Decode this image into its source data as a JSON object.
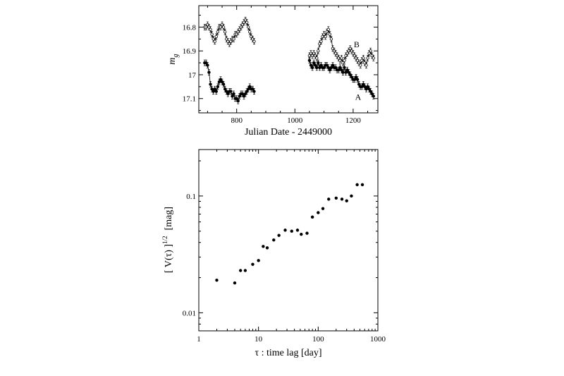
{
  "chart_data": [
    {
      "type": "scatter",
      "title": "",
      "xlabel": "Julian Date - 2449000",
      "ylabel": "m",
      "ylabel_subscript": "g",
      "xlim": [
        670,
        1285
      ],
      "ylim": [
        17.16,
        16.71
      ],
      "y_inverted": true,
      "x_ticks": [
        800,
        1000,
        1200
      ],
      "x_tick_labels": [
        "800",
        "1000",
        "1200"
      ],
      "y_ticks": [
        16.8,
        16.9,
        17.0,
        17.1
      ],
      "y_tick_labels": [
        "16.8",
        "16.9",
        "17",
        "17.1"
      ],
      "grid": false,
      "series": [
        {
          "name": "A",
          "marker": "filled-circle",
          "x": [
            690,
            695,
            700,
            705,
            710,
            715,
            720,
            725,
            730,
            735,
            740,
            745,
            750,
            755,
            760,
            765,
            770,
            775,
            780,
            785,
            790,
            795,
            800,
            805,
            810,
            815,
            820,
            825,
            830,
            835,
            840,
            845,
            850,
            855,
            860,
            1050,
            1055,
            1060,
            1065,
            1070,
            1075,
            1080,
            1085,
            1090,
            1095,
            1100,
            1105,
            1110,
            1115,
            1120,
            1125,
            1130,
            1135,
            1140,
            1145,
            1150,
            1155,
            1160,
            1165,
            1170,
            1175,
            1180,
            1185,
            1190,
            1195,
            1200,
            1205,
            1210,
            1215,
            1220,
            1225,
            1230,
            1235,
            1240,
            1245,
            1250,
            1255,
            1260,
            1265,
            1270
          ],
          "y": [
            16.95,
            16.95,
            16.96,
            16.99,
            17.04,
            17.06,
            17.07,
            17.06,
            17.07,
            17.05,
            17.03,
            17.02,
            17.03,
            17.04,
            17.06,
            17.07,
            17.08,
            17.07,
            17.07,
            17.09,
            17.08,
            17.1,
            17.1,
            17.11,
            17.09,
            17.08,
            17.08,
            17.09,
            17.08,
            17.07,
            17.06,
            17.05,
            17.06,
            17.06,
            17.07,
            16.94,
            16.96,
            16.97,
            16.95,
            16.96,
            16.97,
            16.95,
            16.97,
            16.96,
            16.97,
            16.97,
            16.96,
            16.96,
            16.97,
            16.98,
            16.97,
            16.96,
            16.97,
            16.97,
            16.98,
            16.98,
            16.97,
            16.98,
            16.99,
            16.97,
            16.99,
            16.98,
            16.99,
            17.0,
            17.01,
            17.02,
            17.02,
            17.01,
            17.02,
            17.04,
            17.05,
            17.05,
            17.04,
            17.05,
            17.06,
            17.05,
            17.06,
            17.07,
            17.08,
            17.09
          ]
        },
        {
          "name": "B",
          "marker": "open-circle",
          "x": [
            690,
            695,
            700,
            705,
            710,
            715,
            720,
            725,
            730,
            735,
            740,
            745,
            750,
            755,
            760,
            765,
            770,
            775,
            780,
            785,
            790,
            795,
            800,
            805,
            810,
            815,
            820,
            825,
            830,
            835,
            840,
            845,
            850,
            855,
            860,
            1050,
            1055,
            1060,
            1065,
            1070,
            1075,
            1080,
            1085,
            1090,
            1095,
            1100,
            1105,
            1110,
            1115,
            1120,
            1125,
            1130,
            1135,
            1140,
            1145,
            1150,
            1155,
            1160,
            1165,
            1170,
            1175,
            1180,
            1185,
            1190,
            1195,
            1200,
            1205,
            1210,
            1215,
            1220,
            1225,
            1230,
            1235,
            1240,
            1245,
            1250,
            1255,
            1260,
            1265,
            1270
          ],
          "y": [
            16.8,
            16.8,
            16.79,
            16.8,
            16.81,
            16.83,
            16.85,
            16.86,
            16.84,
            16.82,
            16.8,
            16.8,
            16.79,
            16.8,
            16.82,
            16.85,
            16.86,
            16.87,
            16.86,
            16.85,
            16.85,
            16.83,
            16.83,
            16.82,
            16.81,
            16.8,
            16.79,
            16.78,
            16.77,
            16.78,
            16.8,
            16.82,
            16.84,
            16.85,
            16.86,
            16.92,
            16.91,
            16.92,
            16.91,
            16.92,
            16.93,
            16.9,
            16.87,
            16.86,
            16.84,
            16.83,
            16.84,
            16.82,
            16.81,
            16.83,
            16.85,
            16.89,
            16.9,
            16.91,
            16.92,
            16.93,
            16.94,
            16.93,
            16.95,
            16.94,
            16.92,
            16.91,
            16.9,
            16.89,
            16.9,
            16.91,
            16.92,
            16.93,
            16.94,
            16.95,
            16.96,
            16.94,
            16.93,
            16.95,
            16.96,
            16.93,
            16.91,
            16.9,
            16.92,
            16.93
          ]
        }
      ],
      "series_labels": [
        {
          "text": "B",
          "x": 1212,
          "y": 16.885
        },
        {
          "text": "A",
          "x": 1217,
          "y": 17.105
        }
      ]
    },
    {
      "type": "scatter",
      "title": "",
      "xlabel": "τ : time lag [day]",
      "ylabel": "[ V(τ) ]",
      "ylabel_superscript": "1/2",
      "ylabel_unit": "[mag]",
      "x_scale": "log",
      "y_scale": "log",
      "xlim": [
        1,
        1000
      ],
      "ylim": [
        0.007,
        0.25
      ],
      "x_ticks": [
        1,
        10,
        100,
        1000
      ],
      "x_tick_labels": [
        "1",
        "10",
        "100",
        "1000"
      ],
      "y_ticks": [
        0.01,
        0.1
      ],
      "y_tick_labels": [
        "0.01",
        "0.1"
      ],
      "grid": false,
      "series": [
        {
          "x": [
            2,
            4,
            5,
            6,
            8,
            10,
            12,
            14,
            18,
            22,
            28,
            36,
            45,
            52,
            65,
            80,
            100,
            120,
            150,
            200,
            250,
            300,
            360,
            450,
            550
          ],
          "y": [
            0.019,
            0.018,
            0.023,
            0.023,
            0.026,
            0.028,
            0.037,
            0.036,
            0.042,
            0.046,
            0.051,
            0.05,
            0.051,
            0.047,
            0.048,
            0.066,
            0.072,
            0.078,
            0.094,
            0.096,
            0.094,
            0.091,
            0.1,
            0.125,
            0.125
          ]
        }
      ]
    }
  ]
}
